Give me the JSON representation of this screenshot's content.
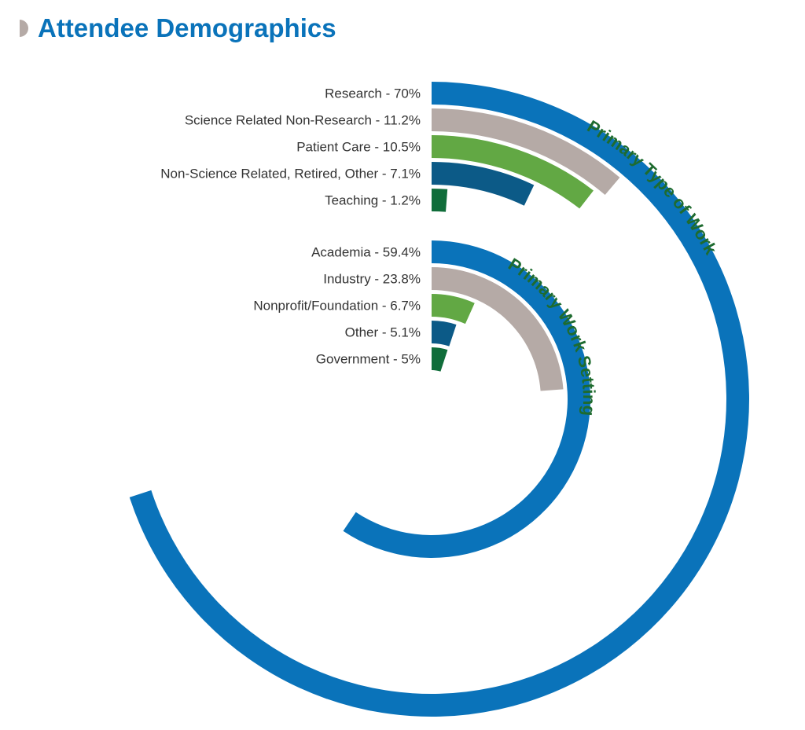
{
  "page": {
    "title": "Attendee Demographics",
    "title_marker_color": "#b5aaa6",
    "title_color": "#0a73ba"
  },
  "chart_data": [
    {
      "type": "radial-bar",
      "title": "Primary Type of Work",
      "title_color": "#1e6b2f",
      "categories": [
        "Research",
        "Science Related Non-Research",
        "Patient Care",
        "Non-Science Related, Retired, Other",
        "Teaching"
      ],
      "labels": [
        "Research - 70%",
        "Science Related Non-Research - 11.2%",
        "Patient Care - 10.5%",
        "Non-Science Related, Retired, Other - 7.1%",
        "Teaching - 1.2%"
      ],
      "values": [
        70,
        11.2,
        10.5,
        7.1,
        1.2
      ],
      "colors": [
        "#0a73ba",
        "#b5aaa6",
        "#62a844",
        "#0c5a87",
        "#106d3a"
      ],
      "unit": "%"
    },
    {
      "type": "radial-bar",
      "title": "Primary Work Setting",
      "title_color": "#1e6b2f",
      "categories": [
        "Academia",
        "Industry",
        "Nonprofit/Foundation",
        "Other",
        "Government"
      ],
      "labels": [
        "Academia - 59.4%",
        "Industry - 23.8%",
        "Nonprofit/Foundation - 6.7%",
        "Other - 5.1%",
        "Government - 5%"
      ],
      "values": [
        59.4,
        23.8,
        6.7,
        5.1,
        5
      ],
      "colors": [
        "#0a73ba",
        "#b5aaa6",
        "#62a844",
        "#0c5a87",
        "#106d3a"
      ],
      "unit": "%"
    }
  ]
}
